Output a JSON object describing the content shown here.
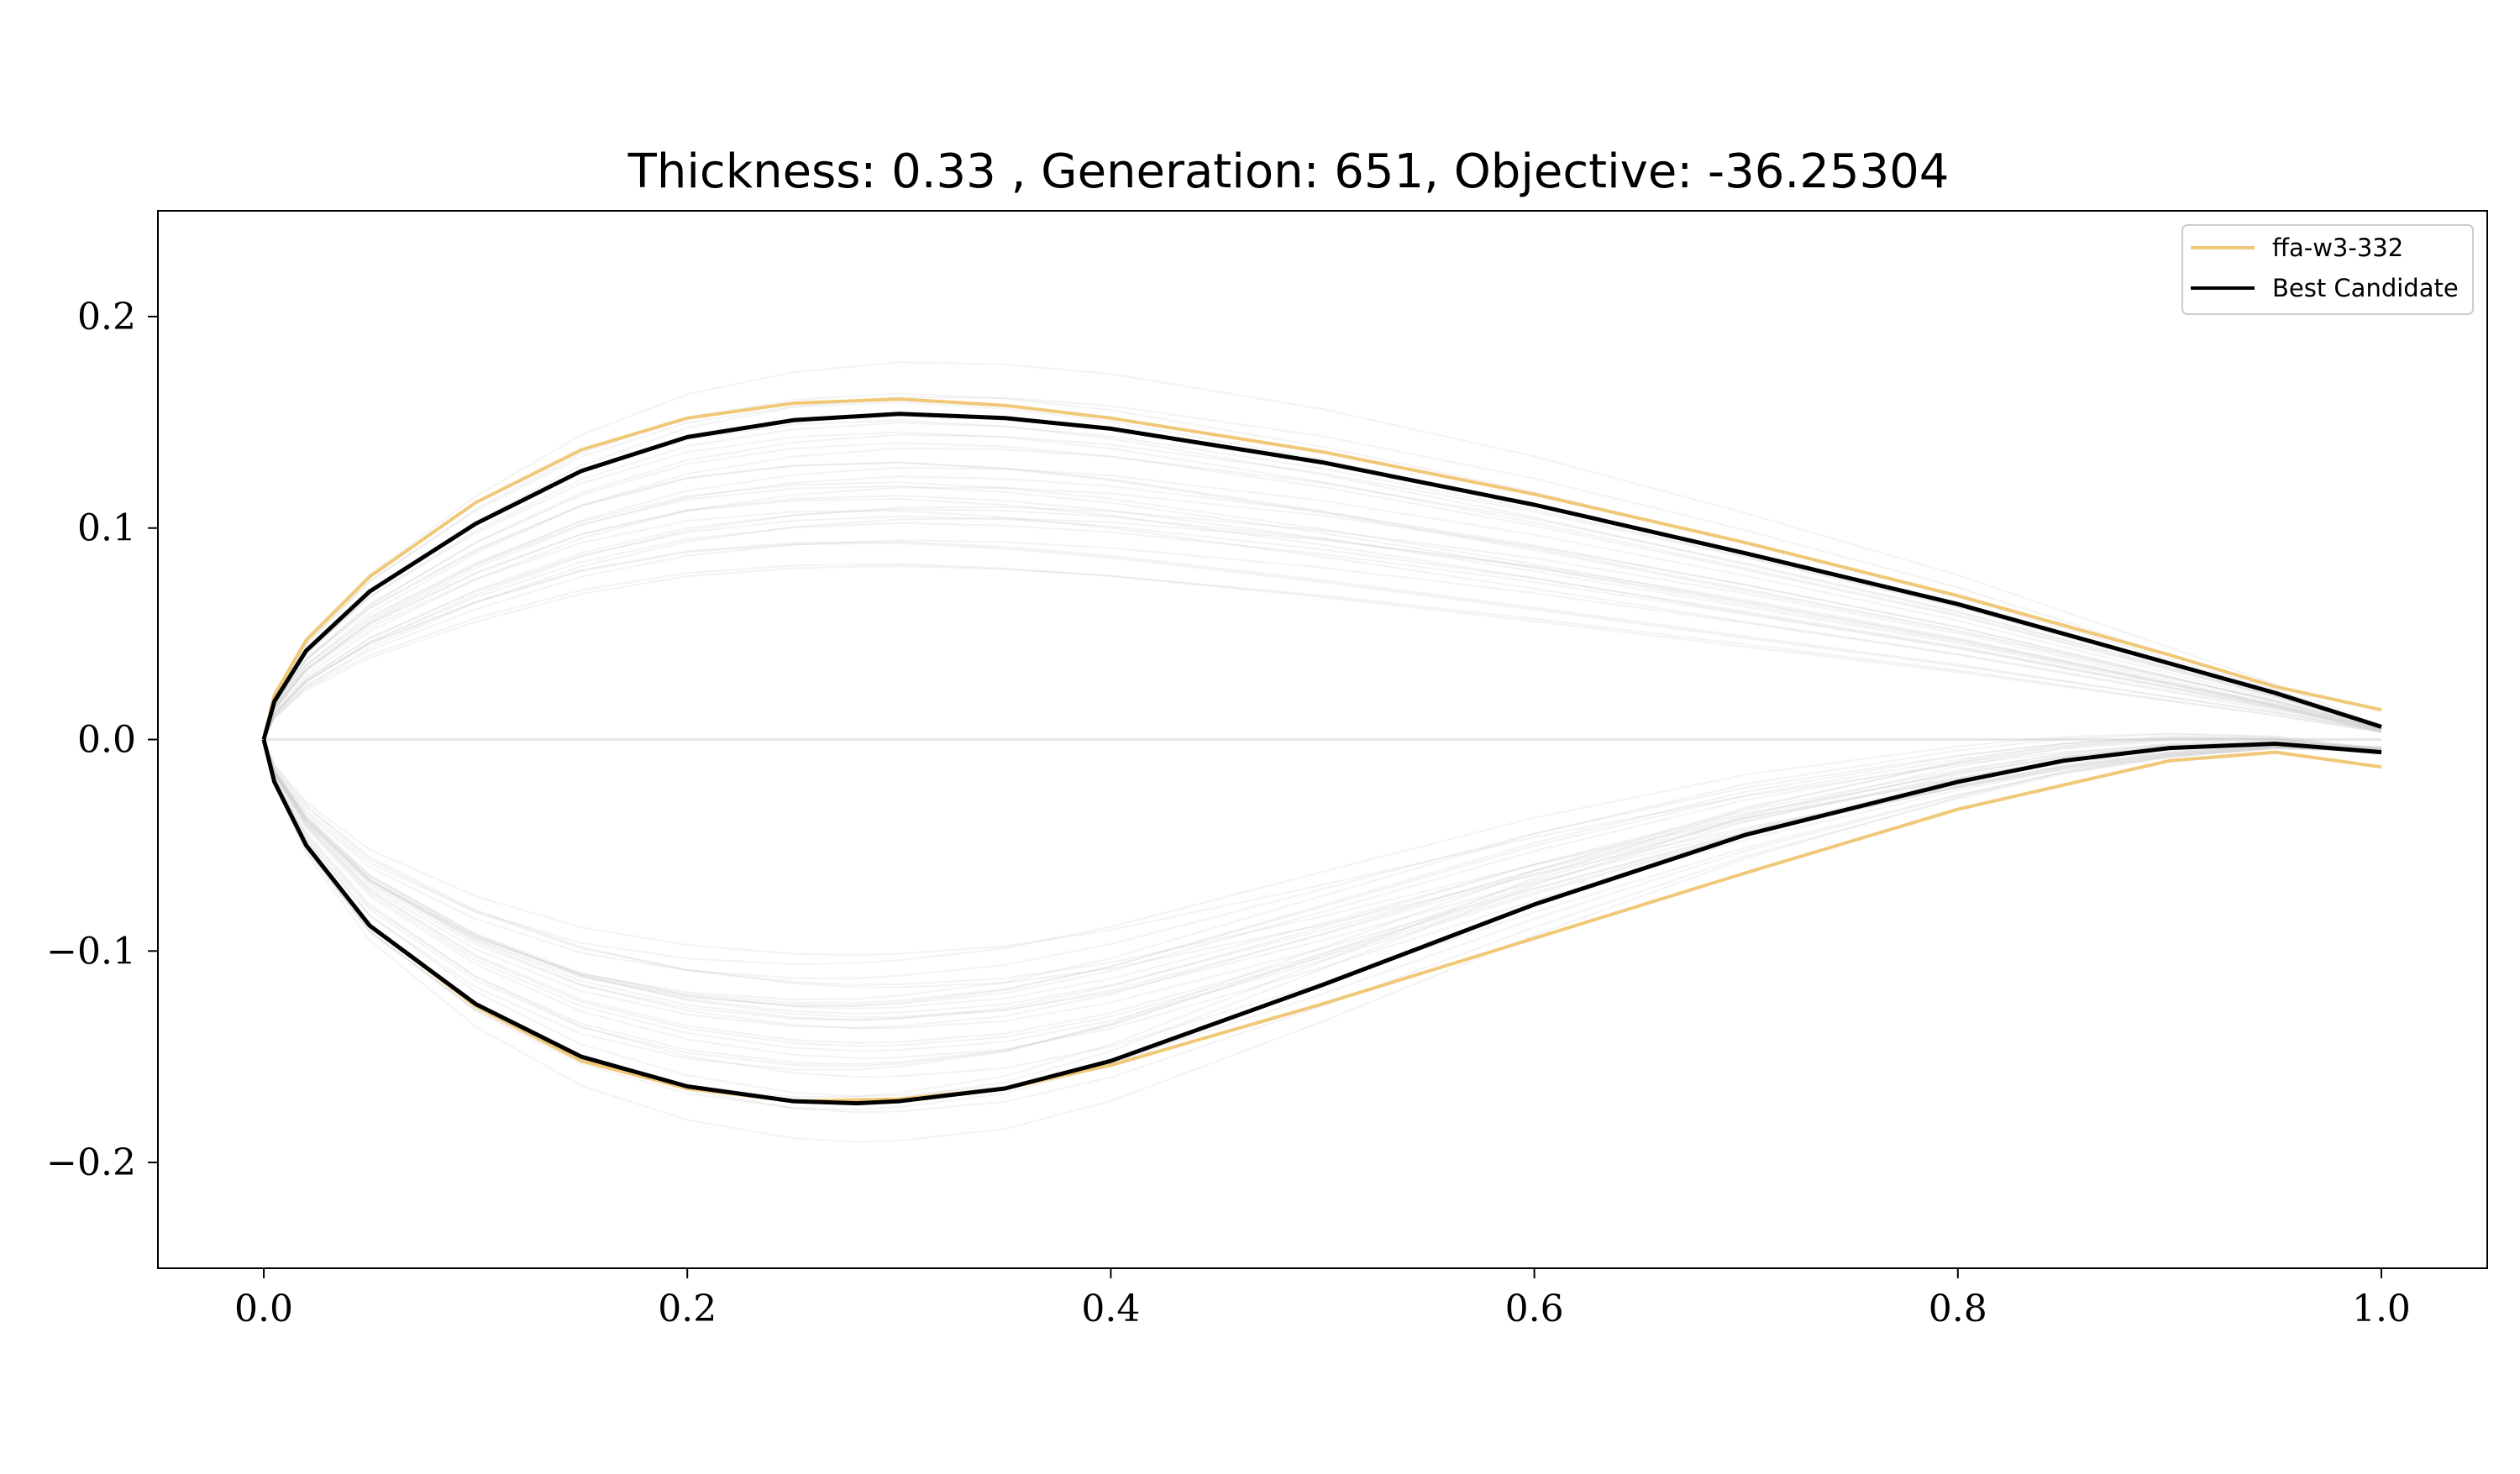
{
  "chart_data": {
    "type": "line",
    "title": "Thickness: 0.33 , Generation: 651, Objective: -36.25304",
    "xlabel": "",
    "ylabel": "",
    "xlim": [
      -0.05,
      1.05
    ],
    "ylim": [
      -0.25,
      0.25
    ],
    "x_ticks": [
      0.0,
      0.2,
      0.4,
      0.6,
      0.8,
      1.0
    ],
    "x_tick_labels": [
      "0.0",
      "0.2",
      "0.4",
      "0.6",
      "0.8",
      "1.0"
    ],
    "y_ticks": [
      -0.2,
      -0.1,
      0.0,
      0.1,
      0.2
    ],
    "y_tick_labels": [
      "−0.2",
      "−0.1",
      "0.0",
      "0.1",
      "0.2"
    ],
    "grid": false,
    "legend_position": "top-right",
    "series": [
      {
        "name": "ffa-w3-332",
        "color": "#f0c878",
        "upper": [
          [
            0.0,
            0.0
          ],
          [
            0.005,
            0.021
          ],
          [
            0.02,
            0.047
          ],
          [
            0.05,
            0.077
          ],
          [
            0.1,
            0.112
          ],
          [
            0.15,
            0.137
          ],
          [
            0.2,
            0.152
          ],
          [
            0.25,
            0.159
          ],
          [
            0.3,
            0.161
          ],
          [
            0.35,
            0.158
          ],
          [
            0.4,
            0.152
          ],
          [
            0.5,
            0.136
          ],
          [
            0.6,
            0.116
          ],
          [
            0.7,
            0.093
          ],
          [
            0.8,
            0.068
          ],
          [
            0.9,
            0.04
          ],
          [
            0.95,
            0.025
          ],
          [
            1.0,
            0.014
          ]
        ],
        "lower": [
          [
            0.0,
            0.0
          ],
          [
            0.005,
            -0.02
          ],
          [
            0.02,
            -0.05
          ],
          [
            0.05,
            -0.088
          ],
          [
            0.1,
            -0.126
          ],
          [
            0.15,
            -0.152
          ],
          [
            0.2,
            -0.165
          ],
          [
            0.25,
            -0.171
          ],
          [
            0.3,
            -0.17
          ],
          [
            0.35,
            -0.165
          ],
          [
            0.4,
            -0.154
          ],
          [
            0.5,
            -0.125
          ],
          [
            0.6,
            -0.094
          ],
          [
            0.7,
            -0.063
          ],
          [
            0.8,
            -0.033
          ],
          [
            0.9,
            -0.01
          ],
          [
            0.95,
            -0.006
          ],
          [
            1.0,
            -0.013
          ]
        ]
      },
      {
        "name": "Best Candidate",
        "color": "#000000",
        "upper": [
          [
            0.0,
            0.0
          ],
          [
            0.005,
            0.018
          ],
          [
            0.02,
            0.042
          ],
          [
            0.05,
            0.07
          ],
          [
            0.1,
            0.102
          ],
          [
            0.15,
            0.127
          ],
          [
            0.2,
            0.143
          ],
          [
            0.25,
            0.151
          ],
          [
            0.3,
            0.154
          ],
          [
            0.35,
            0.152
          ],
          [
            0.4,
            0.147
          ],
          [
            0.5,
            0.131
          ],
          [
            0.6,
            0.111
          ],
          [
            0.7,
            0.088
          ],
          [
            0.8,
            0.064
          ],
          [
            0.9,
            0.036
          ],
          [
            0.95,
            0.022
          ],
          [
            1.0,
            0.006
          ]
        ],
        "lower": [
          [
            0.0,
            0.0
          ],
          [
            0.005,
            -0.02
          ],
          [
            0.02,
            -0.05
          ],
          [
            0.05,
            -0.088
          ],
          [
            0.1,
            -0.125
          ],
          [
            0.15,
            -0.15
          ],
          [
            0.2,
            -0.164
          ],
          [
            0.25,
            -0.171
          ],
          [
            0.28,
            -0.172
          ],
          [
            0.3,
            -0.171
          ],
          [
            0.35,
            -0.165
          ],
          [
            0.4,
            -0.152
          ],
          [
            0.5,
            -0.116
          ],
          [
            0.6,
            -0.078
          ],
          [
            0.7,
            -0.045
          ],
          [
            0.8,
            -0.02
          ],
          [
            0.85,
            -0.01
          ],
          [
            0.9,
            -0.004
          ],
          [
            0.95,
            -0.002
          ],
          [
            1.0,
            -0.006
          ]
        ]
      }
    ],
    "background_candidates": {
      "color": "#c8c8c8",
      "count": 30
    }
  }
}
